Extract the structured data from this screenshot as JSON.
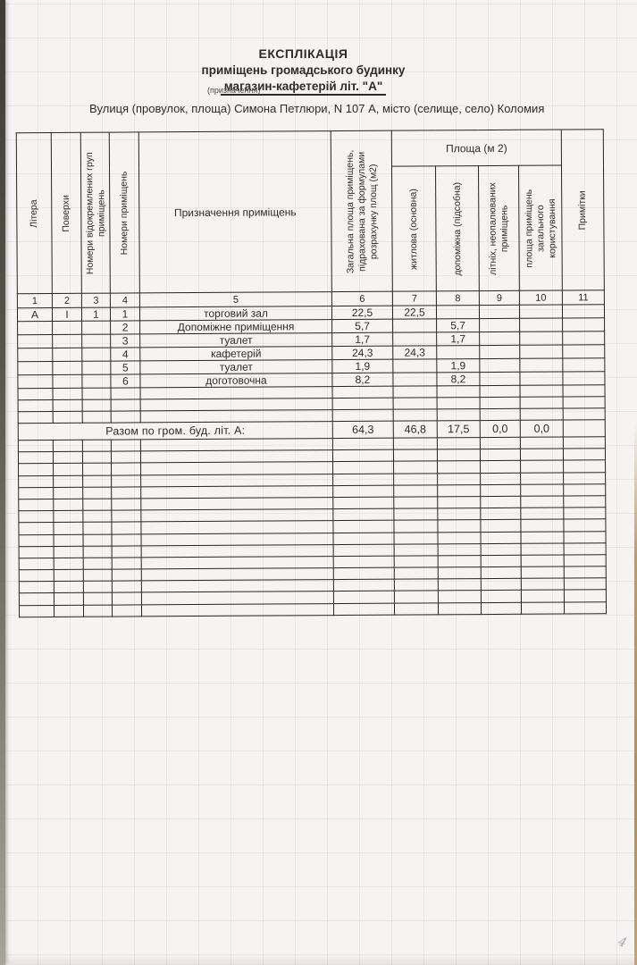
{
  "document": {
    "title": "ЕКСПЛІКАЦІЯ",
    "subtitle": "приміщень громадського будинку",
    "object_line": "магазин-кафетерій  літ. \"А\"",
    "object_note": "(призначення)",
    "address_line": "Вулиця (провулок, площа) Симона Петлюри,  N 107 А,  місто (селище, село) Коломия"
  },
  "table": {
    "group_header": "Площа (м 2)",
    "columns": [
      {
        "num": "1",
        "label": "Літера"
      },
      {
        "num": "2",
        "label": "Поверхи"
      },
      {
        "num": "3",
        "label": "Номери відокремлених груп приміщень"
      },
      {
        "num": "4",
        "label": "Номери приміщень"
      },
      {
        "num": "5",
        "label": "Призначення приміщень"
      },
      {
        "num": "6",
        "label": "Загальна площа приміщень, підрахована за формулами розрахунку площ (м2)"
      },
      {
        "num": "7",
        "label": "житлова (основна)"
      },
      {
        "num": "8",
        "label": "допоміжна (підсобна)"
      },
      {
        "num": "9",
        "label": "літніх, неопалюваних приміщень"
      },
      {
        "num": "10",
        "label": "площа приміщень загального користування"
      },
      {
        "num": "11",
        "label": "Примітки"
      }
    ],
    "rows": [
      [
        "А",
        "І",
        "1",
        "1",
        "торговий зал",
        "22,5",
        "22,5",
        "",
        "",
        "",
        ""
      ],
      [
        "",
        "",
        "",
        "2",
        "Допоміжне приміщення",
        "5,7",
        "",
        "5,7",
        "",
        "",
        ""
      ],
      [
        "",
        "",
        "",
        "3",
        "туалет",
        "1,7",
        "",
        "1,7",
        "",
        "",
        ""
      ],
      [
        "",
        "",
        "",
        "4",
        "кафетерій",
        "24,3",
        "24,3",
        "",
        "",
        "",
        ""
      ],
      [
        "",
        "",
        "",
        "5",
        "туалет",
        "1,9",
        "",
        "1,9",
        "",
        "",
        ""
      ],
      [
        "",
        "",
        "",
        "6",
        "доготовочна",
        "8,2",
        "",
        "8,2",
        "",
        "",
        ""
      ]
    ],
    "empty_rows_before_total": 3,
    "total_row": {
      "label": "Разом по гром. буд. літ. А:",
      "values": [
        "64,3",
        "46,8",
        "17,5",
        "0,0",
        "0,0",
        ""
      ]
    },
    "empty_rows_after_total": 15
  },
  "annotations": {
    "page_number": "4"
  },
  "colors": {
    "page_bg": "#f6f4f2",
    "table_border": "#262522",
    "text": "#2e2c29",
    "pencil": "#9e97a5",
    "edge_tan": "#b28f55",
    "edge_dark": "#3d3c37"
  }
}
